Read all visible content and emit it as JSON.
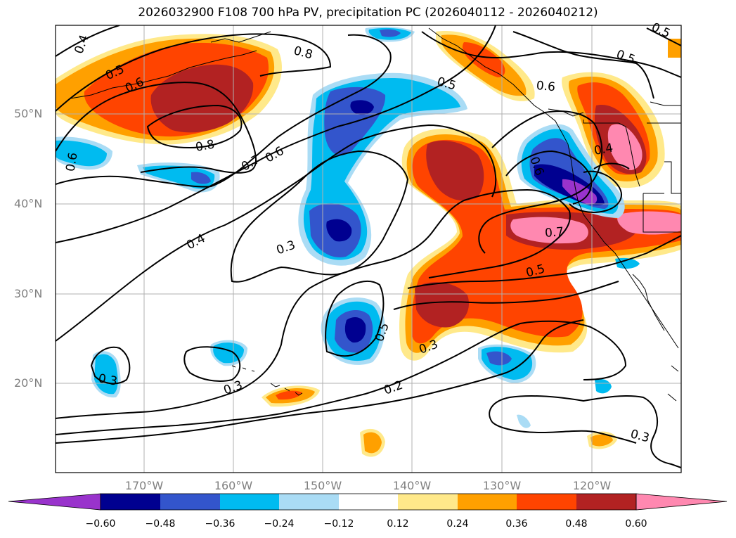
{
  "title": "2026032900 F108 700 hPa PV, precipitation PC (2026040112 - 2026040212)",
  "latitude_labels": [
    "50°N",
    "40°N",
    "30°N",
    "20°N"
  ],
  "longitude_labels": [
    "170°W",
    "160°W",
    "150°W",
    "140°W",
    "130°W",
    "120°W"
  ],
  "contour_labels": [
    "0.4",
    "0.5",
    "0.6",
    "0.8",
    "0.8",
    "0.6",
    "0.7",
    "0.6",
    "0.4",
    "0.3",
    "0.5",
    "0.3",
    "0.3",
    "0.2",
    "0.3",
    "0.5",
    "0.6",
    "0.5",
    "0.6",
    "0.4",
    "0.7",
    "0.5",
    "0.5",
    "0.3"
  ],
  "colorbar": {
    "ticks": [
      "−0.60",
      "−0.48",
      "−0.36",
      "−0.24",
      "−0.12",
      "0.12",
      "0.24",
      "0.36",
      "0.48",
      "0.60"
    ],
    "colors": [
      "#9933cc",
      "#000090",
      "#3355cc",
      "#00bbf0",
      "#aadcf5",
      "#ffffff",
      "#ffe98a",
      "#ffa000",
      "#ff4400",
      "#b22222",
      "#ff88b0"
    ]
  }
}
